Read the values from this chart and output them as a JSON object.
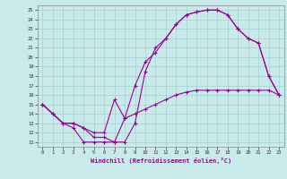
{
  "xlabel": "Windchill (Refroidissement éolien,°C)",
  "xlim": [
    -0.5,
    23.5
  ],
  "ylim": [
    10.5,
    25.5
  ],
  "xtick_vals": [
    0,
    1,
    2,
    3,
    4,
    5,
    6,
    7,
    8,
    9,
    10,
    11,
    12,
    13,
    14,
    15,
    16,
    17,
    18,
    19,
    20,
    21,
    22,
    23
  ],
  "ytick_vals": [
    11,
    12,
    13,
    14,
    15,
    16,
    17,
    18,
    19,
    20,
    21,
    22,
    23,
    24,
    25
  ],
  "bg_color": "#c8eaea",
  "grid_color": "#a0c8c8",
  "line_color": "#990099",
  "line1_x": [
    0,
    1,
    2,
    3,
    4,
    5,
    6,
    7,
    8,
    9,
    10,
    11,
    12,
    13,
    14,
    15,
    16,
    17,
    18,
    19,
    20,
    21,
    22,
    23
  ],
  "line1_y": [
    15.0,
    14.0,
    13.0,
    12.5,
    11.0,
    11.0,
    11.0,
    11.0,
    13.5,
    17.0,
    19.5,
    20.5,
    22.0,
    23.5,
    24.5,
    24.8,
    25.0,
    25.0,
    24.5,
    23.0,
    22.0,
    21.5,
    18.0,
    16.0
  ],
  "line2_x": [
    0,
    1,
    2,
    3,
    4,
    5,
    6,
    7,
    8,
    9,
    10,
    11,
    12,
    13,
    14,
    15,
    16,
    17,
    18,
    19,
    20,
    21,
    22,
    23
  ],
  "line2_y": [
    15.0,
    14.0,
    13.0,
    13.0,
    12.5,
    11.5,
    11.5,
    11.0,
    11.0,
    13.0,
    18.5,
    21.0,
    22.0,
    23.5,
    24.5,
    24.8,
    25.0,
    25.0,
    24.5,
    23.0,
    22.0,
    21.5,
    18.0,
    16.0
  ],
  "line3_x": [
    0,
    1,
    2,
    3,
    4,
    5,
    6,
    7,
    8,
    9,
    10,
    11,
    12,
    13,
    14,
    15,
    16,
    17,
    18,
    19,
    20,
    21,
    22,
    23
  ],
  "line3_y": [
    15.0,
    14.0,
    13.0,
    13.0,
    12.5,
    12.0,
    12.0,
    15.5,
    13.5,
    14.0,
    14.5,
    15.0,
    15.5,
    16.0,
    16.3,
    16.5,
    16.5,
    16.5,
    16.5,
    16.5,
    16.5,
    16.5,
    16.5,
    16.0
  ]
}
